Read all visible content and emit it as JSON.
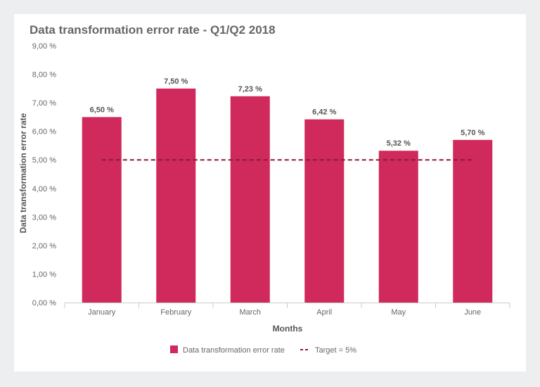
{
  "chart_data": {
    "type": "bar",
    "title": "Data transformation error rate - Q1/Q2 2018",
    "xlabel": "Months",
    "ylabel": "Data transformation error rate",
    "categories": [
      "January",
      "February",
      "March",
      "April",
      "May",
      "June"
    ],
    "series": [
      {
        "name": "Data transformation error rate",
        "values": [
          6.5,
          7.5,
          7.23,
          6.42,
          5.32,
          5.7
        ],
        "color": "#cf2a5b"
      }
    ],
    "data_labels": [
      "6,50 %",
      "7,50 %",
      "7,23 %",
      "6,42 %",
      "5,32 %",
      "5,70 %"
    ],
    "target": {
      "name": "Target = 5%",
      "value": 5,
      "color": "#8b1a3a",
      "style": "dashed"
    },
    "ylim": [
      0,
      9
    ],
    "yticks": [
      0,
      1,
      2,
      3,
      4,
      5,
      6,
      7,
      8,
      9
    ],
    "ytick_labels": [
      "0,00 %",
      "1,00 %",
      "2,00 %",
      "3,00 %",
      "4,00 %",
      "5,00 %",
      "6,00 %",
      "7,00 %",
      "8,00 %",
      "9,00 %"
    ],
    "grid": false,
    "legend_position": "bottom"
  }
}
